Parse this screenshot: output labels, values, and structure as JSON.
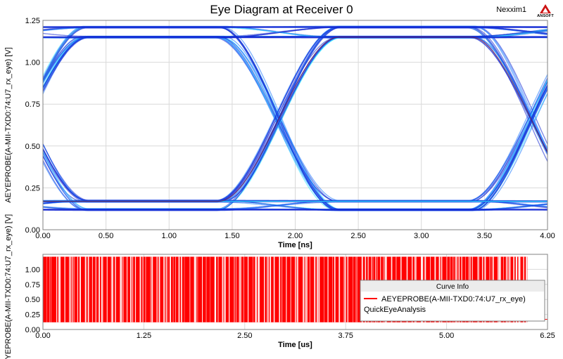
{
  "header": {
    "title": "Eye Diagram at Receiver 0",
    "simulator": "Nexxim1",
    "logo_text": "ANSOFT"
  },
  "colors": {
    "eye_dense": "#1428d2",
    "eye_mid": "#1e78ff",
    "eye_hot": "#33e6ff",
    "mask_line": "#7a1a3c",
    "bitstream": "#ff0000",
    "grid": "#d9d9d9",
    "legend_bg": "#ffffff"
  },
  "legend": {
    "title": "Curve Info",
    "entry": "AEYEPROBE(A-MII-TXD0:74:U7_rx_eye)",
    "subtitle": "QuickEyeAnalysis"
  },
  "chart_data": [
    {
      "type": "line",
      "role": "eye-diagram",
      "xlabel": "Time [ns]",
      "ylabel": "AEYEPROBE(A-MII-TXD0:74:U7_rx_eye) [V]",
      "xlim": [
        0,
        4.0
      ],
      "ylim": [
        0,
        1.25
      ],
      "x_ticks": [
        "0.00",
        "0.50",
        "1.00",
        "1.50",
        "2.00",
        "2.50",
        "3.00",
        "3.50",
        "4.00"
      ],
      "y_ticks": [
        "0.00",
        "0.25",
        "0.50",
        "0.75",
        "1.00",
        "1.25"
      ],
      "grid": true,
      "unit_interval_ns": 2.0,
      "crossing_times_ns": [
        1.87,
        3.87
      ],
      "crossing_voltage_v": 0.74,
      "high_levels_v": [
        1.15,
        1.21
      ],
      "low_levels_v": [
        0.12,
        0.17
      ],
      "eye_levels_v": [
        0.12,
        0.17,
        1.15,
        1.21
      ]
    },
    {
      "type": "line",
      "role": "bitstream",
      "xlabel": "Time [us]",
      "ylabel": "AEYEPROBE(A-MII-TXD0:74:U7_rx_eye) [V]",
      "xlim": [
        0,
        6.25
      ],
      "ylim": [
        0,
        1.25
      ],
      "x_ticks": [
        "0.00",
        "1.25",
        "2.50",
        "3.75",
        "5.00",
        "6.25"
      ],
      "y_ticks": [
        "0.00",
        "0.25",
        "0.50",
        "0.75",
        "1.00"
      ],
      "grid": true,
      "signal_end_us": 6.0,
      "signal_low_v": 0.12,
      "signal_high_v": 1.21,
      "legend_position": "right"
    }
  ]
}
